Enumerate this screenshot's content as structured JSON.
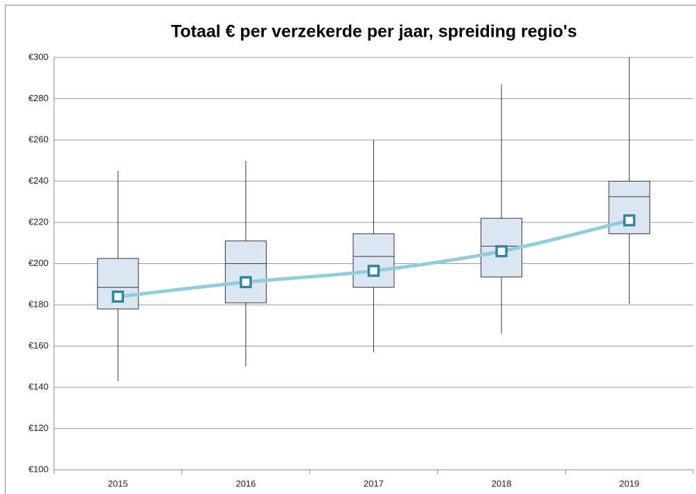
{
  "chart_data": {
    "type": "box",
    "title": "Totaal € per verzekerde per jaar, spreiding regio's",
    "categories": [
      "2015",
      "2016",
      "2017",
      "2018",
      "2019"
    ],
    "min": [
      143,
      150,
      157,
      166,
      180.5
    ],
    "q1": [
      178,
      181,
      188.5,
      193.5,
      214.5
    ],
    "median": [
      188.5,
      200,
      203.5,
      208.5,
      232.5
    ],
    "q3": [
      202.5,
      211,
      214.5,
      222,
      240
    ],
    "max": [
      245,
      250,
      260,
      287,
      300
    ],
    "mean": [
      184,
      191,
      196.5,
      206,
      221
    ],
    "box_color": "#dce6f2",
    "mean_color": "#92cddc",
    "marker_color": "#31859c",
    "ylim": [
      100,
      300
    ],
    "yticks": [
      {
        "value": 100,
        "label": "€100"
      },
      {
        "value": 120,
        "label": "€120"
      },
      {
        "value": 140,
        "label": "€140"
      },
      {
        "value": 160,
        "label": "€160"
      },
      {
        "value": 180,
        "label": "€180"
      },
      {
        "value": 200,
        "label": "€200"
      },
      {
        "value": 220,
        "label": "€220"
      },
      {
        "value": 240,
        "label": "€240"
      },
      {
        "value": 260,
        "label": "€260"
      },
      {
        "value": 280,
        "label": "€280"
      },
      {
        "value": 300,
        "label": "€300"
      }
    ],
    "grid": true
  }
}
